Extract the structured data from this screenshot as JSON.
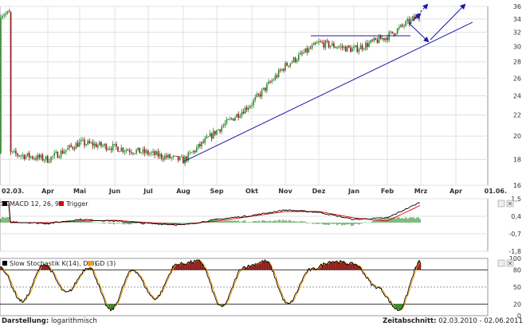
{
  "chart_data": [
    {
      "type": "candlestick",
      "y_scale": "log",
      "ylim": [
        16,
        36
      ],
      "y_ticks": [
        "36",
        "34",
        "32",
        "30",
        "28",
        "26",
        "24",
        "22",
        "20",
        "18",
        "16"
      ],
      "x_tick_labels": [
        "02.03.",
        "Apr",
        "Mai",
        "Jun",
        "Jul",
        "Aug",
        "Sep",
        "Okt",
        "Nov",
        "Dez",
        "Jan",
        "Feb",
        "Mrz",
        "Apr",
        "01.06."
      ],
      "price_path": [
        [
          "02.03.",
          18.5
        ],
        [
          "Apr",
          18.0
        ],
        [
          "Mai",
          19.4
        ],
        [
          "Jun",
          19.0
        ],
        [
          "Jul",
          18.5
        ],
        [
          "Aug",
          17.9
        ],
        [
          "Sep",
          20.5
        ],
        [
          "Okt",
          23.2
        ],
        [
          "Nov",
          27.5
        ],
        [
          "Dez",
          30.5
        ],
        [
          "Jan",
          29.6
        ],
        [
          "Feb",
          31.4
        ],
        [
          "Mrz",
          34.8
        ]
      ],
      "annotations": {
        "support_trendline": [
          [
            "Aug",
            17.8
          ],
          [
            "Apr",
            33.5
          ]
        ],
        "resistance_line": [
          [
            "Dez",
            31.5
          ],
          [
            "Feb",
            31.5
          ]
        ],
        "arrows": 4
      }
    },
    {
      "type": "line",
      "legend": [
        {
          "name": "MACD 12, 26, 9",
          "color": "#000000"
        },
        {
          "name": "Trigger",
          "color": "#dd0000"
        }
      ],
      "y_ticks": [
        "1,5",
        "0,4",
        "-0,7",
        "-1,8"
      ],
      "series": [
        {
          "name": "MACD 12, 26, 9",
          "values": [
            0.05,
            -0.05,
            0.2,
            0.1,
            -0.05,
            -0.15,
            0.2,
            0.45,
            0.8,
            0.65,
            0.2,
            0.3,
            1.3
          ]
        },
        {
          "name": "Trigger",
          "values": [
            0.0,
            0.0,
            0.1,
            0.15,
            0.0,
            -0.1,
            0.1,
            0.4,
            0.7,
            0.7,
            0.3,
            0.1,
            1.1
          ]
        }
      ]
    },
    {
      "type": "line",
      "legend": [
        {
          "name": "Slow Stochastik K(14), D(3)",
          "color": "#000000"
        },
        {
          "name": "GD (3)",
          "color": "#f0a000"
        }
      ],
      "y_ticks": [
        "100",
        "80",
        "50",
        "20",
        "0"
      ],
      "series": [
        {
          "name": "Slow Stochastik K(14), D(3)",
          "values": [
            85,
            25,
            90,
            40,
            85,
            10,
            80,
            30,
            90,
            95,
            15,
            85,
            95,
            20,
            80,
            95,
            90,
            50,
            10,
            95
          ]
        }
      ]
    }
  ],
  "footer": {
    "left_label": "Darstellung:",
    "left_value": "logarithmisch",
    "right_label": "Zeitabschnitt:",
    "right_value": "02.03.2010 - 02.06.2011"
  },
  "colors": {
    "trendline": "#1a1aaa",
    "candle_up": "#2e8b2e",
    "candle_down": "#8b1a1a",
    "macd_line": "#000000",
    "trigger_line": "#dd0000",
    "histogram": "#2e8b2e",
    "stoch_k": "#000000",
    "stoch_d": "#f0a000",
    "stoch_above": "#8b1a1a",
    "stoch_below": "#2e8b2e",
    "grid": "#e0e0e0",
    "panel_border": "#999999"
  }
}
